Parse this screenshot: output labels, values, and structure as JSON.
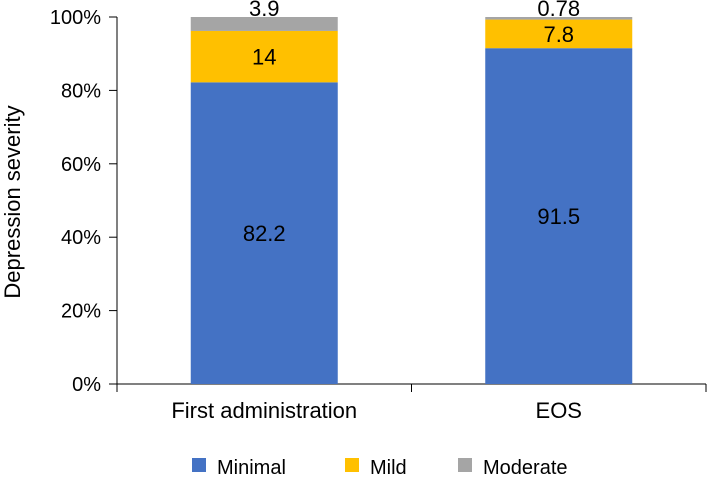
{
  "chart_data": {
    "type": "bar",
    "stacked": true,
    "categories": [
      "First administration",
      "EOS"
    ],
    "series": [
      {
        "name": "Minimal",
        "color": "#4472C4",
        "values": [
          82.2,
          91.5
        ],
        "labels": [
          "82.2",
          "91.5"
        ]
      },
      {
        "name": "Mild",
        "color": "#FFC000",
        "values": [
          14,
          7.8
        ],
        "labels": [
          "14",
          "7.8"
        ]
      },
      {
        "name": "Moderate",
        "color": "#A5A5A5",
        "values": [
          3.9,
          0.78
        ],
        "labels": [
          "3.9",
          "0.78"
        ]
      }
    ],
    "ylabel": "Depression severity",
    "xlabel": "",
    "ylim": [
      0,
      100
    ],
    "yticks": [
      "0%",
      "20%",
      "40%",
      "60%",
      "80%",
      "100%"
    ],
    "grid": false,
    "legend_position": "bottom"
  }
}
